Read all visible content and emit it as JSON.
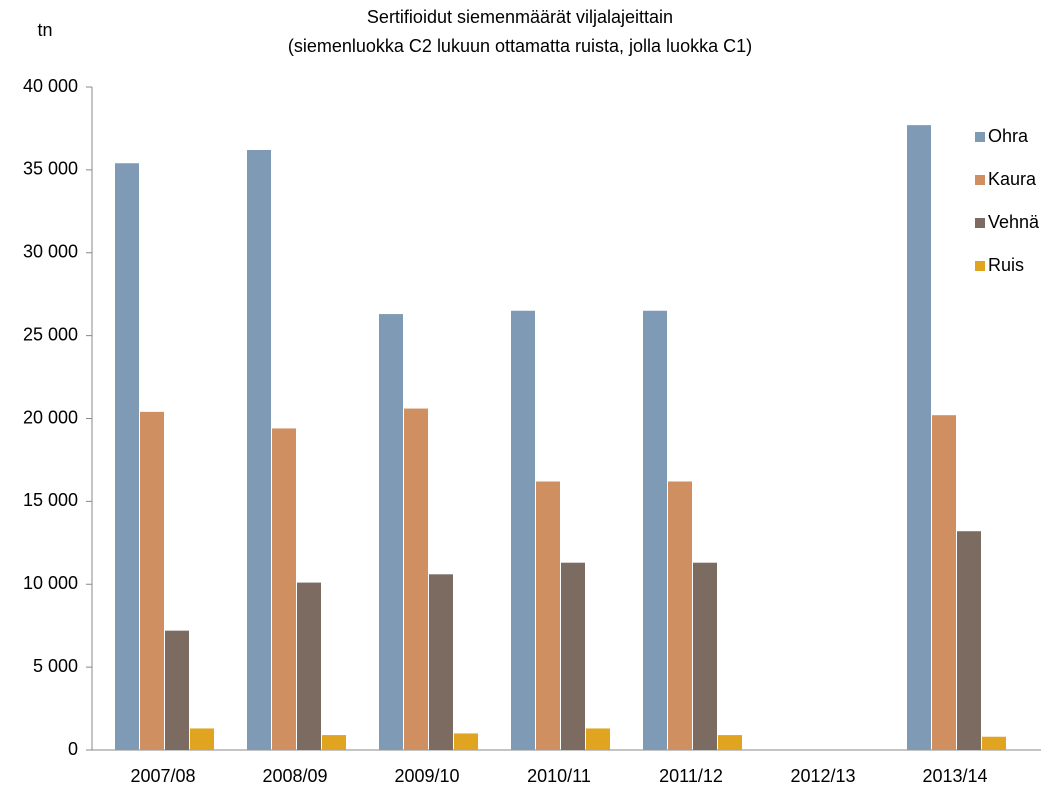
{
  "chart_data": {
    "type": "bar",
    "title": "Sertifioidut siemenmäärät viljalajeittain",
    "subtitle": "(siemenluokka C2 lukuun ottamatta ruista, jolla luokka C1)",
    "y_label": "tn",
    "categories": [
      "2007/08",
      "2008/09",
      "2009/10",
      "2010/11",
      "2011/12",
      "2012/13",
      "2013/14"
    ],
    "series": [
      {
        "name": "Ohra",
        "color": "#7f9ab5",
        "values": [
          35400,
          36200,
          26300,
          26500,
          26500,
          null,
          37700
        ]
      },
      {
        "name": "Kaura",
        "color": "#cf8f60",
        "values": [
          20400,
          19400,
          20600,
          16200,
          16200,
          null,
          20200
        ]
      },
      {
        "name": "Vehnä",
        "color": "#7b6b60",
        "values": [
          7200,
          10100,
          10600,
          11300,
          11300,
          null,
          13200
        ]
      },
      {
        "name": "Ruis",
        "color": "#e0a421",
        "values": [
          1300,
          900,
          1000,
          1300,
          900,
          null,
          800
        ]
      }
    ],
    "ylim": [
      0,
      40000
    ],
    "yticks": [
      0,
      {
        "value": 5000,
        "label": "5 000"
      },
      {
        "value": 10000,
        "label": "10 000"
      },
      {
        "value": 15000,
        "label": "15 000"
      },
      {
        "value": 20000,
        "label": "20 000"
      },
      {
        "value": 25000,
        "label": "25 000"
      },
      {
        "value": 30000,
        "label": "30 000"
      },
      {
        "value": 35000,
        "label": "35 000"
      },
      {
        "value": 40000,
        "label": "40 000"
      }
    ],
    "grid": false,
    "legend": "upper right"
  }
}
